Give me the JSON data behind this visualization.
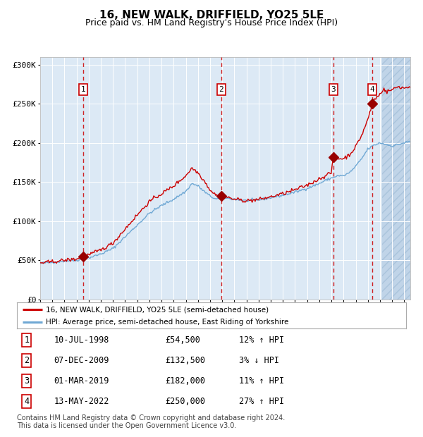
{
  "title": "16, NEW WALK, DRIFFIELD, YO25 5LE",
  "subtitle": "Price paid vs. HM Land Registry's House Price Index (HPI)",
  "xlim": [
    1995.0,
    2025.5
  ],
  "ylim": [
    0,
    310000
  ],
  "yticks": [
    0,
    50000,
    100000,
    150000,
    200000,
    250000,
    300000
  ],
  "ytick_labels": [
    "£0",
    "£50K",
    "£100K",
    "£150K",
    "£200K",
    "£250K",
    "£300K"
  ],
  "transactions": [
    {
      "num": 1,
      "date_str": "10-JUL-1998",
      "year": 1998.53,
      "price": 54500,
      "pct": "12%",
      "dir": "↑"
    },
    {
      "num": 2,
      "date_str": "07-DEC-2009",
      "year": 2009.93,
      "price": 132500,
      "pct": "3%",
      "dir": "↓"
    },
    {
      "num": 3,
      "date_str": "01-MAR-2019",
      "year": 2019.17,
      "price": 182000,
      "pct": "11%",
      "dir": "↑"
    },
    {
      "num": 4,
      "date_str": "13-MAY-2022",
      "year": 2022.37,
      "price": 250000,
      "pct": "27%",
      "dir": "↑"
    }
  ],
  "hpi_line_color": "#6fa8d4",
  "price_line_color": "#cc0000",
  "marker_color": "#990000",
  "dashed_line_color": "#cc0000",
  "bg_color": "#dce9f5",
  "hatch_color": "#c0d4e8",
  "grid_color": "#ffffff",
  "legend_label_red": "16, NEW WALK, DRIFFIELD, YO25 5LE (semi-detached house)",
  "legend_label_blue": "HPI: Average price, semi-detached house, East Riding of Yorkshire",
  "footer": "Contains HM Land Registry data © Crown copyright and database right 2024.\nThis data is licensed under the Open Government Licence v3.0.",
  "title_fontsize": 11,
  "subtitle_fontsize": 9,
  "hpi_key_points": [
    [
      1995.0,
      46000
    ],
    [
      1996.0,
      47500
    ],
    [
      1997.0,
      49000
    ],
    [
      1998.0,
      50000
    ],
    [
      1999.0,
      53000
    ],
    [
      2000.0,
      58000
    ],
    [
      2001.0,
      65000
    ],
    [
      2002.0,
      80000
    ],
    [
      2003.0,
      95000
    ],
    [
      2004.0,
      110000
    ],
    [
      2005.0,
      120000
    ],
    [
      2006.0,
      128000
    ],
    [
      2007.0,
      138000
    ],
    [
      2007.5,
      148000
    ],
    [
      2008.0,
      145000
    ],
    [
      2008.5,
      138000
    ],
    [
      2009.0,
      132000
    ],
    [
      2009.5,
      128000
    ],
    [
      2010.0,
      130000
    ],
    [
      2011.0,
      128000
    ],
    [
      2012.0,
      126000
    ],
    [
      2013.0,
      127000
    ],
    [
      2014.0,
      130000
    ],
    [
      2015.0,
      133000
    ],
    [
      2016.0,
      137000
    ],
    [
      2017.0,
      142000
    ],
    [
      2018.0,
      148000
    ],
    [
      2018.5,
      152000
    ],
    [
      2019.0,
      155000
    ],
    [
      2019.5,
      158000
    ],
    [
      2020.0,
      158000
    ],
    [
      2020.5,
      162000
    ],
    [
      2021.0,
      170000
    ],
    [
      2021.5,
      180000
    ],
    [
      2022.0,
      192000
    ],
    [
      2022.5,
      197000
    ],
    [
      2023.0,
      200000
    ],
    [
      2023.5,
      198000
    ],
    [
      2024.0,
      196000
    ],
    [
      2024.5,
      198000
    ],
    [
      2025.0,
      200000
    ],
    [
      2025.5,
      202000
    ]
  ],
  "price_key_points": [
    [
      1995.0,
      46500
    ],
    [
      1996.0,
      48000
    ],
    [
      1997.0,
      50000
    ],
    [
      1998.0,
      51500
    ],
    [
      1998.53,
      54500
    ],
    [
      1999.0,
      57000
    ],
    [
      2000.0,
      63000
    ],
    [
      2001.0,
      72000
    ],
    [
      2002.0,
      90000
    ],
    [
      2003.0,
      108000
    ],
    [
      2004.0,
      125000
    ],
    [
      2005.0,
      135000
    ],
    [
      2006.0,
      145000
    ],
    [
      2007.0,
      158000
    ],
    [
      2007.5,
      168000
    ],
    [
      2008.0,
      162000
    ],
    [
      2008.5,
      152000
    ],
    [
      2009.0,
      140000
    ],
    [
      2009.5,
      133000
    ],
    [
      2009.93,
      132500
    ],
    [
      2010.0,
      133000
    ],
    [
      2010.5,
      130000
    ],
    [
      2011.0,
      128000
    ],
    [
      2012.0,
      126000
    ],
    [
      2013.0,
      127500
    ],
    [
      2014.0,
      131000
    ],
    [
      2015.0,
      135000
    ],
    [
      2016.0,
      140000
    ],
    [
      2017.0,
      146000
    ],
    [
      2018.0,
      154000
    ],
    [
      2018.5,
      158000
    ],
    [
      2019.0,
      162000
    ],
    [
      2019.17,
      182000
    ],
    [
      2019.5,
      180000
    ],
    [
      2020.0,
      180000
    ],
    [
      2020.5,
      185000
    ],
    [
      2021.0,
      195000
    ],
    [
      2021.5,
      210000
    ],
    [
      2022.0,
      230000
    ],
    [
      2022.37,
      250000
    ],
    [
      2022.5,
      255000
    ],
    [
      2023.0,
      262000
    ],
    [
      2023.3,
      270000
    ],
    [
      2023.5,
      265000
    ],
    [
      2024.0,
      268000
    ],
    [
      2024.5,
      272000
    ],
    [
      2025.0,
      270000
    ],
    [
      2025.5,
      272000
    ]
  ],
  "hatch_start": 2023.2,
  "noise_hpi": 800,
  "noise_price": 1200
}
